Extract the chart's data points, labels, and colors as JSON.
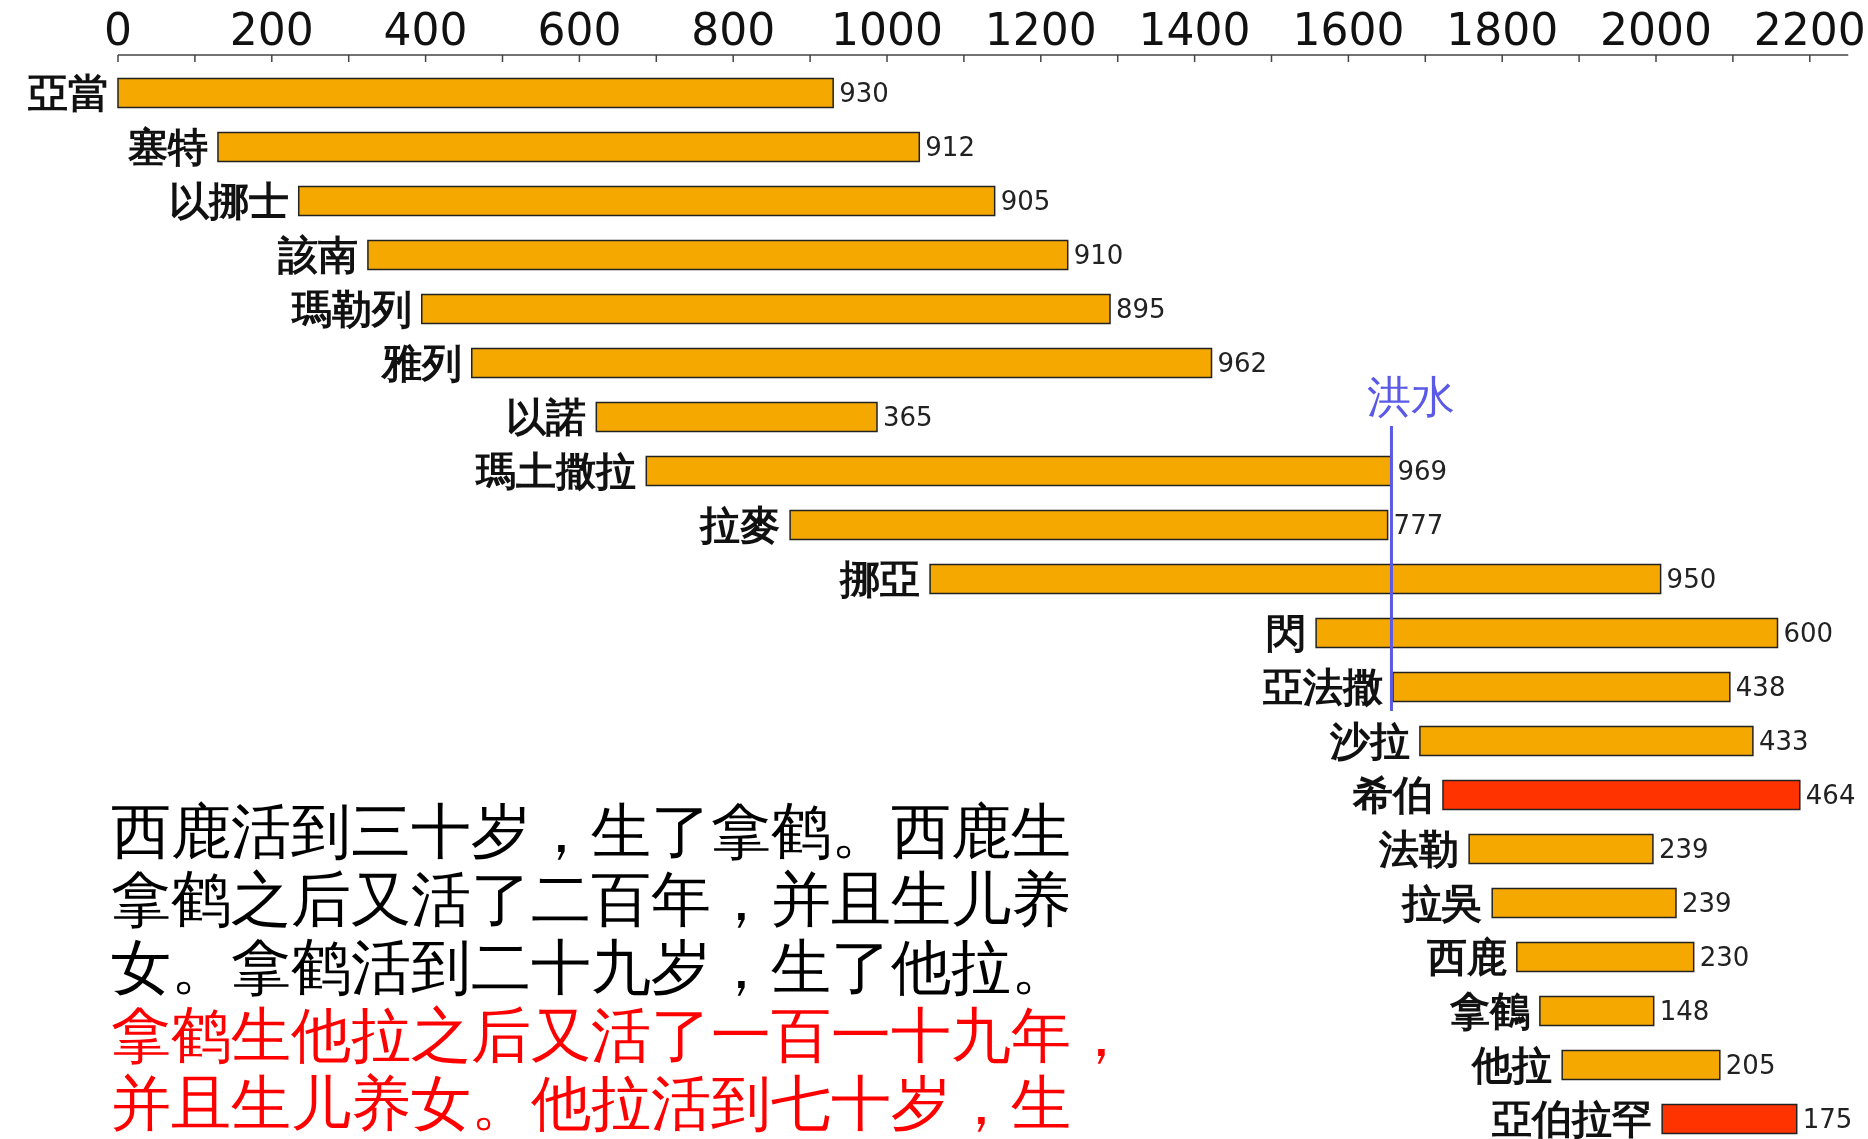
{
  "chart_data": {
    "type": "bar",
    "orientation": "horizontal",
    "categories": [
      "亞當",
      "塞特",
      "以挪士",
      "該南",
      "瑪勒列",
      "雅列",
      "以諾",
      "瑪土撒拉",
      "拉麥",
      "挪亞",
      "閃",
      "亞法撒",
      "沙拉",
      "希伯",
      "法勒",
      "拉吳",
      "西鹿",
      "拿鶴",
      "他拉",
      "亞伯拉罕"
    ],
    "base": [
      0,
      130,
      235,
      325,
      395,
      460,
      622,
      687,
      874,
      1056,
      1558,
      1658,
      1693,
      1723,
      1757,
      1787,
      1819,
      1849,
      1878,
      2008
    ],
    "values": [
      930,
      912,
      905,
      910,
      895,
      962,
      365,
      969,
      777,
      950,
      600,
      438,
      433,
      464,
      239,
      239,
      230,
      148,
      205,
      175
    ],
    "colors": [
      "#f5a800",
      "#f5a800",
      "#f5a800",
      "#f5a800",
      "#f5a800",
      "#f5a800",
      "#f5a800",
      "#f5a800",
      "#f5a800",
      "#f5a800",
      "#f5a800",
      "#f5a800",
      "#f5a800",
      "#ff3300",
      "#f5a800",
      "#f5a800",
      "#f5a800",
      "#f5a800",
      "#f5a800",
      "#ff3300"
    ],
    "data_labels": true,
    "xlim": [
      0,
      2250
    ],
    "xticks": [
      0,
      {
        "value": 100,
        "label": null
      },
      200,
      {
        "value": 300,
        "label": null
      },
      400,
      {
        "value": 500,
        "label": null
      },
      600,
      {
        "value": 700,
        "label": null
      },
      800,
      {
        "value": 900,
        "label": null
      },
      1000,
      {
        "value": 1100,
        "label": null
      },
      1200,
      {
        "value": 1300,
        "label": null
      },
      1400,
      {
        "value": 1500,
        "label": null
      },
      1600,
      {
        "value": 1700,
        "label": null
      },
      1800,
      {
        "value": 1900,
        "label": null
      },
      2000,
      {
        "value": 2100,
        "label": null
      },
      2200
    ],
    "ref_lines": [
      {
        "axis": "x",
        "value": 1656,
        "label": "洪水",
        "color": "#5a5ae6"
      }
    ],
    "grid": false,
    "annotations": [
      "西鹿活到三十岁，生了拿鹤。西鹿生拿鹤之后又活了二百年，并且生儿养女。拿鹤活到二十九岁，生了他拉。",
      "拿鹤生他拉之后又活了一百一十九年，并且生儿养女。他拉活到七十岁，生"
    ]
  }
}
